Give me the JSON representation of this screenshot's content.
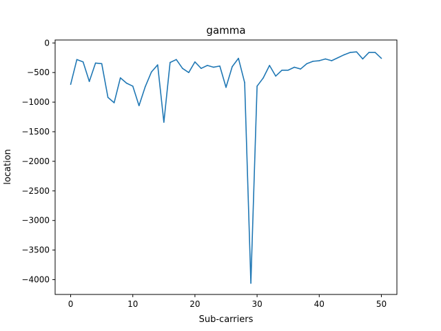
{
  "chart_data": {
    "type": "line",
    "title": "gamma",
    "xlabel": "Sub-carriers",
    "ylabel": "location",
    "xlim": [
      -2.5,
      52.5
    ],
    "ylim": [
      -4250,
      50
    ],
    "xticks": [
      0,
      10,
      20,
      30,
      40,
      50
    ],
    "yticks": [
      0,
      -500,
      -1000,
      -1500,
      -2000,
      -2500,
      -3000,
      -3500,
      -4000
    ],
    "grid": false,
    "color": "#1f77b4",
    "series": [
      {
        "x": [
          0,
          1,
          2,
          3,
          4,
          5,
          6,
          7,
          8,
          9,
          10,
          11,
          12,
          13,
          14,
          15,
          16,
          17,
          18,
          19,
          20,
          21,
          22,
          23,
          24,
          25,
          26,
          27,
          28,
          29,
          30,
          31,
          32,
          33,
          34,
          35,
          36,
          37,
          38,
          39,
          40,
          41,
          42,
          43,
          44,
          45,
          46,
          47,
          48,
          49,
          50
        ],
        "values": [
          -700,
          -280,
          -320,
          -650,
          -340,
          -350,
          -920,
          -1010,
          -590,
          -680,
          -730,
          -1060,
          -740,
          -490,
          -370,
          -1340,
          -330,
          -280,
          -430,
          -500,
          -320,
          -430,
          -380,
          -410,
          -390,
          -750,
          -400,
          -260,
          -670,
          -4060,
          -730,
          -590,
          -380,
          -560,
          -460,
          -460,
          -410,
          -440,
          -350,
          -310,
          -300,
          -270,
          -300,
          -250,
          -200,
          -160,
          -150,
          -270,
          -160,
          -160,
          -260
        ]
      }
    ]
  }
}
